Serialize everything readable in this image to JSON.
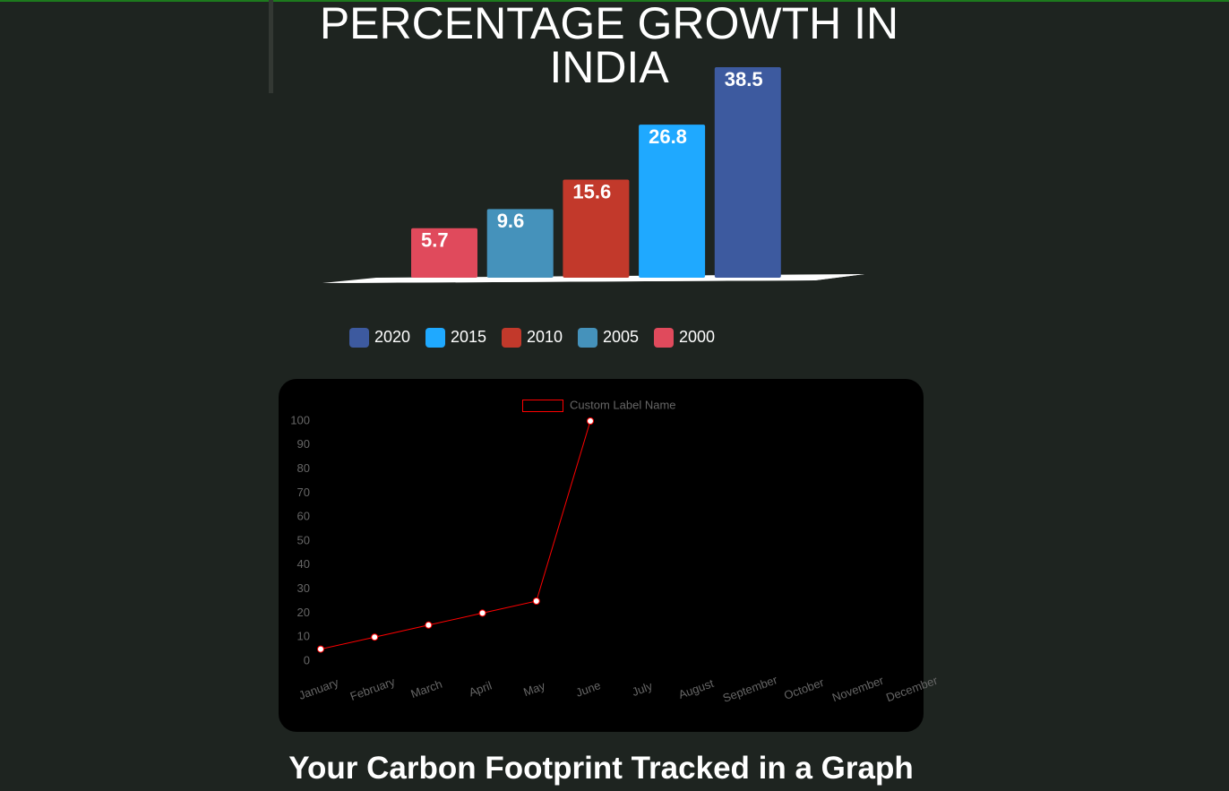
{
  "chart_data": [
    {
      "type": "bar3d",
      "title": "PERCENTAGE GROWTH IN INDIA",
      "categories": [
        "2000",
        "2005",
        "2010",
        "2015",
        "2020"
      ],
      "values": [
        5.7,
        9.6,
        15.6,
        26.8,
        38.5
      ],
      "colors": [
        "#e04a5c",
        "#4592bb",
        "#c2392b",
        "#1fa9ff",
        "#3d5a9f"
      ]
    },
    {
      "type": "line",
      "categories": [
        "January",
        "February",
        "March",
        "April",
        "May",
        "June",
        "July",
        "August",
        "September",
        "October",
        "November",
        "December"
      ],
      "series": [
        {
          "name": "Custom Label Name",
          "color": "#ff0000",
          "values": [
            5,
            10,
            15,
            20,
            25,
            100,
            null,
            null,
            null,
            null,
            null,
            null
          ]
        }
      ],
      "ylim": [
        0,
        100
      ],
      "yticks": [
        0,
        10,
        20,
        30,
        40,
        50,
        60,
        70,
        80,
        90,
        100
      ]
    }
  ],
  "heading": "Your Carbon Footprint Tracked in a Graph"
}
